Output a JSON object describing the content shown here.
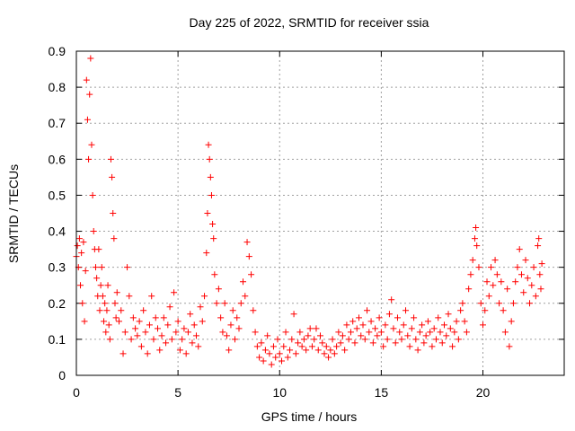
{
  "chart_data": {
    "type": "scatter",
    "title": "Day 225 of 2022, SRMTID for receiver ssia",
    "xlabel": "GPS time / hours",
    "ylabel": "SRMTID / TECUs",
    "xlim": [
      0,
      24
    ],
    "ylim": [
      0,
      0.9
    ],
    "xticks": [
      0,
      5,
      10,
      15,
      20
    ],
    "yticks": [
      0,
      0.1,
      0.2,
      0.3,
      0.4,
      0.5,
      0.6,
      0.7,
      0.8,
      0.9
    ],
    "grid": true,
    "marker": "+",
    "color": "#ff0000",
    "series": [
      {
        "name": "SRMTID",
        "points": [
          [
            0.0,
            0.33
          ],
          [
            0.05,
            0.36
          ],
          [
            0.1,
            0.3
          ],
          [
            0.15,
            0.38
          ],
          [
            0.2,
            0.25
          ],
          [
            0.25,
            0.34
          ],
          [
            0.3,
            0.2
          ],
          [
            0.35,
            0.37
          ],
          [
            0.4,
            0.15
          ],
          [
            0.45,
            0.29
          ],
          [
            0.5,
            0.82
          ],
          [
            0.55,
            0.71
          ],
          [
            0.6,
            0.6
          ],
          [
            0.65,
            0.78
          ],
          [
            0.7,
            0.88
          ],
          [
            0.75,
            0.64
          ],
          [
            0.8,
            0.5
          ],
          [
            0.85,
            0.4
          ],
          [
            0.9,
            0.35
          ],
          [
            0.95,
            0.3
          ],
          [
            1.0,
            0.27
          ],
          [
            1.05,
            0.22
          ],
          [
            1.1,
            0.35
          ],
          [
            1.15,
            0.18
          ],
          [
            1.2,
            0.25
          ],
          [
            1.25,
            0.3
          ],
          [
            1.3,
            0.22
          ],
          [
            1.35,
            0.15
          ],
          [
            1.4,
            0.2
          ],
          [
            1.45,
            0.12
          ],
          [
            1.5,
            0.18
          ],
          [
            1.55,
            0.25
          ],
          [
            1.6,
            0.14
          ],
          [
            1.65,
            0.1
          ],
          [
            1.7,
            0.6
          ],
          [
            1.75,
            0.55
          ],
          [
            1.8,
            0.45
          ],
          [
            1.85,
            0.38
          ],
          [
            1.9,
            0.2
          ],
          [
            1.95,
            0.16
          ],
          [
            2.0,
            0.23
          ],
          [
            2.1,
            0.15
          ],
          [
            2.2,
            0.18
          ],
          [
            2.3,
            0.06
          ],
          [
            2.4,
            0.12
          ],
          [
            2.5,
            0.3
          ],
          [
            2.6,
            0.22
          ],
          [
            2.7,
            0.1
          ],
          [
            2.8,
            0.16
          ],
          [
            2.9,
            0.13
          ],
          [
            3.0,
            0.11
          ],
          [
            3.1,
            0.15
          ],
          [
            3.2,
            0.08
          ],
          [
            3.3,
            0.18
          ],
          [
            3.4,
            0.12
          ],
          [
            3.5,
            0.06
          ],
          [
            3.6,
            0.14
          ],
          [
            3.7,
            0.22
          ],
          [
            3.8,
            0.1
          ],
          [
            3.9,
            0.16
          ],
          [
            4.0,
            0.13
          ],
          [
            4.1,
            0.07
          ],
          [
            4.2,
            0.11
          ],
          [
            4.3,
            0.16
          ],
          [
            4.4,
            0.09
          ],
          [
            4.5,
            0.14
          ],
          [
            4.6,
            0.19
          ],
          [
            4.7,
            0.1
          ],
          [
            4.8,
            0.23
          ],
          [
            4.9,
            0.12
          ],
          [
            5.0,
            0.15
          ],
          [
            5.1,
            0.07
          ],
          [
            5.2,
            0.1
          ],
          [
            5.3,
            0.13
          ],
          [
            5.4,
            0.06
          ],
          [
            5.5,
            0.12
          ],
          [
            5.6,
            0.17
          ],
          [
            5.7,
            0.09
          ],
          [
            5.8,
            0.14
          ],
          [
            5.9,
            0.11
          ],
          [
            6.0,
            0.08
          ],
          [
            6.1,
            0.19
          ],
          [
            6.2,
            0.15
          ],
          [
            6.3,
            0.22
          ],
          [
            6.4,
            0.34
          ],
          [
            6.45,
            0.45
          ],
          [
            6.5,
            0.64
          ],
          [
            6.55,
            0.6
          ],
          [
            6.6,
            0.55
          ],
          [
            6.65,
            0.5
          ],
          [
            6.7,
            0.42
          ],
          [
            6.75,
            0.38
          ],
          [
            6.8,
            0.28
          ],
          [
            6.9,
            0.2
          ],
          [
            7.0,
            0.24
          ],
          [
            7.1,
            0.16
          ],
          [
            7.2,
            0.12
          ],
          [
            7.3,
            0.2
          ],
          [
            7.4,
            0.11
          ],
          [
            7.5,
            0.07
          ],
          [
            7.6,
            0.14
          ],
          [
            7.7,
            0.18
          ],
          [
            7.8,
            0.1
          ],
          [
            7.9,
            0.16
          ],
          [
            8.0,
            0.13
          ],
          [
            8.1,
            0.2
          ],
          [
            8.2,
            0.26
          ],
          [
            8.3,
            0.22
          ],
          [
            8.4,
            0.37
          ],
          [
            8.5,
            0.33
          ],
          [
            8.6,
            0.28
          ],
          [
            8.7,
            0.18
          ],
          [
            8.8,
            0.12
          ],
          [
            8.9,
            0.08
          ],
          [
            9.0,
            0.05
          ],
          [
            9.1,
            0.09
          ],
          [
            9.2,
            0.04
          ],
          [
            9.3,
            0.07
          ],
          [
            9.4,
            0.11
          ],
          [
            9.5,
            0.06
          ],
          [
            9.6,
            0.03
          ],
          [
            9.7,
            0.08
          ],
          [
            9.8,
            0.05
          ],
          [
            9.9,
            0.1
          ],
          [
            10.0,
            0.06
          ],
          [
            10.1,
            0.04
          ],
          [
            10.2,
            0.08
          ],
          [
            10.3,
            0.12
          ],
          [
            10.4,
            0.05
          ],
          [
            10.5,
            0.07
          ],
          [
            10.6,
            0.1
          ],
          [
            10.7,
            0.17
          ],
          [
            10.8,
            0.06
          ],
          [
            10.9,
            0.09
          ],
          [
            11.0,
            0.12
          ],
          [
            11.1,
            0.08
          ],
          [
            11.2,
            0.1
          ],
          [
            11.3,
            0.07
          ],
          [
            11.4,
            0.11
          ],
          [
            11.5,
            0.13
          ],
          [
            11.6,
            0.08
          ],
          [
            11.7,
            0.1
          ],
          [
            11.8,
            0.13
          ],
          [
            11.9,
            0.07
          ],
          [
            12.0,
            0.11
          ],
          [
            12.1,
            0.09
          ],
          [
            12.2,
            0.06
          ],
          [
            12.3,
            0.08
          ],
          [
            12.4,
            0.05
          ],
          [
            12.5,
            0.07
          ],
          [
            12.6,
            0.1
          ],
          [
            12.7,
            0.06
          ],
          [
            12.8,
            0.08
          ],
          [
            12.9,
            0.12
          ],
          [
            13.0,
            0.09
          ],
          [
            13.1,
            0.11
          ],
          [
            13.2,
            0.07
          ],
          [
            13.3,
            0.14
          ],
          [
            13.4,
            0.1
          ],
          [
            13.5,
            0.12
          ],
          [
            13.6,
            0.15
          ],
          [
            13.7,
            0.09
          ],
          [
            13.8,
            0.13
          ],
          [
            13.9,
            0.16
          ],
          [
            14.0,
            0.11
          ],
          [
            14.1,
            0.14
          ],
          [
            14.2,
            0.1
          ],
          [
            14.3,
            0.18
          ],
          [
            14.4,
            0.12
          ],
          [
            14.5,
            0.15
          ],
          [
            14.6,
            0.09
          ],
          [
            14.7,
            0.13
          ],
          [
            14.8,
            0.11
          ],
          [
            14.9,
            0.16
          ],
          [
            15.0,
            0.12
          ],
          [
            15.1,
            0.08
          ],
          [
            15.2,
            0.14
          ],
          [
            15.3,
            0.1
          ],
          [
            15.4,
            0.17
          ],
          [
            15.5,
            0.21
          ],
          [
            15.6,
            0.13
          ],
          [
            15.7,
            0.09
          ],
          [
            15.8,
            0.16
          ],
          [
            15.9,
            0.12
          ],
          [
            16.0,
            0.1
          ],
          [
            16.1,
            0.14
          ],
          [
            16.2,
            0.18
          ],
          [
            16.3,
            0.11
          ],
          [
            16.4,
            0.08
          ],
          [
            16.5,
            0.13
          ],
          [
            16.6,
            0.16
          ],
          [
            16.7,
            0.1
          ],
          [
            16.8,
            0.07
          ],
          [
            16.9,
            0.12
          ],
          [
            17.0,
            0.14
          ],
          [
            17.1,
            0.09
          ],
          [
            17.2,
            0.11
          ],
          [
            17.3,
            0.15
          ],
          [
            17.4,
            0.12
          ],
          [
            17.5,
            0.08
          ],
          [
            17.6,
            0.13
          ],
          [
            17.7,
            0.1
          ],
          [
            17.8,
            0.16
          ],
          [
            17.9,
            0.12
          ],
          [
            18.0,
            0.09
          ],
          [
            18.1,
            0.14
          ],
          [
            18.2,
            0.11
          ],
          [
            18.3,
            0.17
          ],
          [
            18.4,
            0.13
          ],
          [
            18.5,
            0.08
          ],
          [
            18.6,
            0.12
          ],
          [
            18.7,
            0.15
          ],
          [
            18.8,
            0.1
          ],
          [
            18.9,
            0.18
          ],
          [
            19.0,
            0.2
          ],
          [
            19.1,
            0.15
          ],
          [
            19.2,
            0.12
          ],
          [
            19.3,
            0.24
          ],
          [
            19.4,
            0.28
          ],
          [
            19.5,
            0.32
          ],
          [
            19.6,
            0.38
          ],
          [
            19.65,
            0.41
          ],
          [
            19.7,
            0.36
          ],
          [
            19.8,
            0.3
          ],
          [
            19.9,
            0.2
          ],
          [
            20.0,
            0.14
          ],
          [
            20.1,
            0.18
          ],
          [
            20.2,
            0.26
          ],
          [
            20.3,
            0.22
          ],
          [
            20.4,
            0.3
          ],
          [
            20.5,
            0.25
          ],
          [
            20.6,
            0.32
          ],
          [
            20.7,
            0.28
          ],
          [
            20.8,
            0.2
          ],
          [
            20.9,
            0.26
          ],
          [
            21.0,
            0.18
          ],
          [
            21.1,
            0.12
          ],
          [
            21.2,
            0.24
          ],
          [
            21.3,
            0.08
          ],
          [
            21.4,
            0.15
          ],
          [
            21.5,
            0.2
          ],
          [
            21.6,
            0.26
          ],
          [
            21.7,
            0.3
          ],
          [
            21.8,
            0.35
          ],
          [
            21.9,
            0.28
          ],
          [
            22.0,
            0.23
          ],
          [
            22.1,
            0.32
          ],
          [
            22.2,
            0.27
          ],
          [
            22.3,
            0.2
          ],
          [
            22.4,
            0.25
          ],
          [
            22.5,
            0.3
          ],
          [
            22.6,
            0.22
          ],
          [
            22.7,
            0.36
          ],
          [
            22.75,
            0.38
          ],
          [
            22.8,
            0.28
          ],
          [
            22.85,
            0.24
          ],
          [
            22.9,
            0.31
          ]
        ]
      }
    ]
  }
}
